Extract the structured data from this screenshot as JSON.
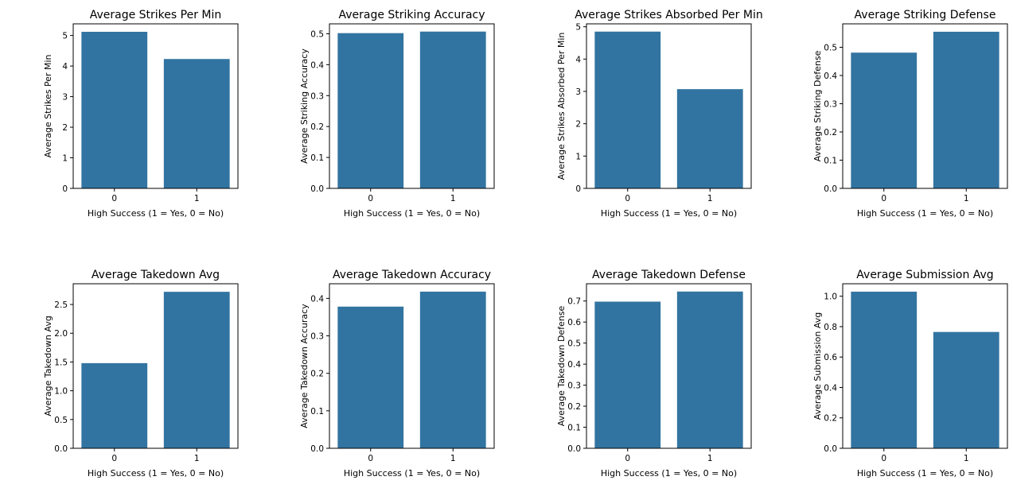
{
  "chart_data": [
    {
      "type": "bar",
      "title": "Average Strikes Per Min",
      "xlabel": "High Success (1 = Yes, 0 = No)",
      "ylabel": "Average Strikes Per Min",
      "categories": [
        "0",
        "1"
      ],
      "values": [
        5.12,
        4.23
      ],
      "ylim": [
        0,
        5.38
      ],
      "yticks": [
        0,
        1,
        2,
        3,
        4,
        5
      ],
      "ytick_labels": [
        "0",
        "1",
        "2",
        "3",
        "4",
        "5"
      ],
      "bar_color": "#3274a1",
      "grid": false
    },
    {
      "type": "bar",
      "title": "Average Striking Accuracy",
      "xlabel": "High Success (1 = Yes, 0 = No)",
      "ylabel": "Average Striking Accuracy",
      "categories": [
        "0",
        "1"
      ],
      "values": [
        0.502,
        0.507
      ],
      "ylim": [
        0,
        0.532
      ],
      "yticks": [
        0,
        0.1,
        0.2,
        0.3,
        0.4,
        0.5
      ],
      "ytick_labels": [
        "0.0",
        "0.1",
        "0.2",
        "0.3",
        "0.4",
        "0.5"
      ],
      "bar_color": "#3274a1",
      "grid": false
    },
    {
      "type": "bar",
      "title": "Average Strikes Absorbed Per Min",
      "xlabel": "High Success (1 = Yes, 0 = No)",
      "ylabel": "Average Strikes Absorbed Per Min",
      "categories": [
        "0",
        "1"
      ],
      "values": [
        4.85,
        3.07
      ],
      "ylim": [
        0,
        5.09
      ],
      "yticks": [
        0,
        1,
        2,
        3,
        4,
        5
      ],
      "ytick_labels": [
        "0",
        "1",
        "2",
        "3",
        "4",
        "5"
      ],
      "bar_color": "#3274a1",
      "grid": false
    },
    {
      "type": "bar",
      "title": "Average Striking Defense",
      "xlabel": "High Success (1 = Yes, 0 = No)",
      "ylabel": "Average Striking Defense",
      "categories": [
        "0",
        "1"
      ],
      "values": [
        0.481,
        0.555
      ],
      "ylim": [
        0,
        0.583
      ],
      "yticks": [
        0,
        0.1,
        0.2,
        0.3,
        0.4,
        0.5
      ],
      "ytick_labels": [
        "0.0",
        "0.1",
        "0.2",
        "0.3",
        "0.4",
        "0.5"
      ],
      "bar_color": "#3274a1",
      "grid": false
    },
    {
      "type": "bar",
      "title": "Average Takedown Avg",
      "xlabel": "High Success (1 = Yes, 0 = No)",
      "ylabel": "Average Takedown Avg",
      "categories": [
        "0",
        "1"
      ],
      "values": [
        1.48,
        2.72
      ],
      "ylim": [
        0,
        2.86
      ],
      "yticks": [
        0,
        0.5,
        1.0,
        1.5,
        2.0,
        2.5
      ],
      "ytick_labels": [
        "0.0",
        "0.5",
        "1.0",
        "1.5",
        "2.0",
        "2.5"
      ],
      "bar_color": "#3274a1",
      "grid": false
    },
    {
      "type": "bar",
      "title": "Average Takedown Accuracy",
      "xlabel": "High Success (1 = Yes, 0 = No)",
      "ylabel": "Average Takedown Accuracy",
      "categories": [
        "0",
        "1"
      ],
      "values": [
        0.378,
        0.418
      ],
      "ylim": [
        0,
        0.439
      ],
      "yticks": [
        0,
        0.1,
        0.2,
        0.3,
        0.4
      ],
      "ytick_labels": [
        "0.0",
        "0.1",
        "0.2",
        "0.3",
        "0.4"
      ],
      "bar_color": "#3274a1",
      "grid": false
    },
    {
      "type": "bar",
      "title": "Average Takedown Defense",
      "xlabel": "High Success (1 = Yes, 0 = No)",
      "ylabel": "Average Takedown Defense",
      "categories": [
        "0",
        "1"
      ],
      "values": [
        0.697,
        0.745
      ],
      "ylim": [
        0,
        0.782
      ],
      "yticks": [
        0,
        0.1,
        0.2,
        0.3,
        0.4,
        0.5,
        0.6,
        0.7
      ],
      "ytick_labels": [
        "0.0",
        "0.1",
        "0.2",
        "0.3",
        "0.4",
        "0.5",
        "0.6",
        "0.7"
      ],
      "bar_color": "#3274a1",
      "grid": false
    },
    {
      "type": "bar",
      "title": "Average Submission Avg",
      "xlabel": "High Success (1 = Yes, 0 = No)",
      "ylabel": "Average Submission Avg",
      "categories": [
        "0",
        "1"
      ],
      "values": [
        1.03,
        0.765
      ],
      "ylim": [
        0,
        1.082
      ],
      "yticks": [
        0,
        0.2,
        0.4,
        0.6,
        0.8,
        1.0
      ],
      "ytick_labels": [
        "0.0",
        "0.2",
        "0.4",
        "0.6",
        "0.8",
        "1.0"
      ],
      "bar_color": "#3274a1",
      "grid": false
    }
  ]
}
